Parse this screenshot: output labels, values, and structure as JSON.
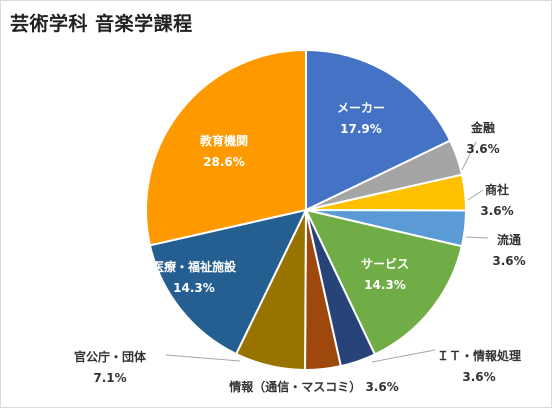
{
  "chart_data": {
    "type": "pie",
    "title": "芸術学科 音楽学課程",
    "colors": [
      "#4472c4",
      "#a5a5a5",
      "#ffc000",
      "#5b9bd5",
      "#70ad47",
      "#264478",
      "#9e480e",
      "#997300",
      "#255e91",
      "#ff9900"
    ],
    "slices": [
      {
        "name": "メーカー",
        "value_label": "17.9%",
        "value": 17.9
      },
      {
        "name": "金融",
        "value_label": "3.6%",
        "value": 3.6
      },
      {
        "name": "商社",
        "value_label": "3.6%",
        "value": 3.6
      },
      {
        "name": "流通",
        "value_label": "3.6%",
        "value": 3.6
      },
      {
        "name": "サービス",
        "value_label": "14.3%",
        "value": 14.3
      },
      {
        "name": "ＩＴ・情報処理",
        "value_label": "3.6%",
        "value": 3.6
      },
      {
        "name": "情報（通信・マスコミ）",
        "value_label": "3.6%",
        "value": 3.6
      },
      {
        "name": "官公庁・団体",
        "value_label": "7.1%",
        "value": 7.1
      },
      {
        "name": "医療・福祉施設",
        "value_label": "14.3%",
        "value": 14.3
      },
      {
        "name": "教育機関",
        "value_label": "28.6%",
        "value": 28.6
      }
    ]
  }
}
